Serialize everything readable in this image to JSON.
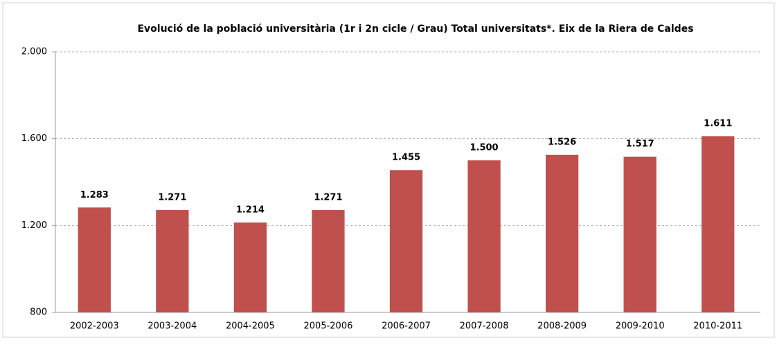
{
  "chart_data": {
    "type": "bar",
    "title": "Evolució de la població universitària (1r i 2n cicle / Grau) Total universitats*. Eix de la Riera de Caldes",
    "categories": [
      "2002-2003",
      "2003-2004",
      "2004-2005",
      "2005-2006",
      "2006-2007",
      "2007-2008",
      "2008-2009",
      "2009-2010",
      "2010-2011"
    ],
    "values": [
      1283,
      1271,
      1214,
      1271,
      1455,
      1500,
      1526,
      1517,
      1611
    ],
    "value_labels": [
      "1.283",
      "1.271",
      "1.214",
      "1.271",
      "1.455",
      "1.500",
      "1.526",
      "1.517",
      "1.611"
    ],
    "color": "#c0504d",
    "ylim": [
      800,
      2000
    ],
    "yticks": [
      800,
      {
        "value": 1200,
        "label": "1.200"
      },
      {
        "value": 1600,
        "label": "1.600"
      },
      {
        "value": 2000,
        "label": "2.000"
      }
    ],
    "grid": true
  }
}
